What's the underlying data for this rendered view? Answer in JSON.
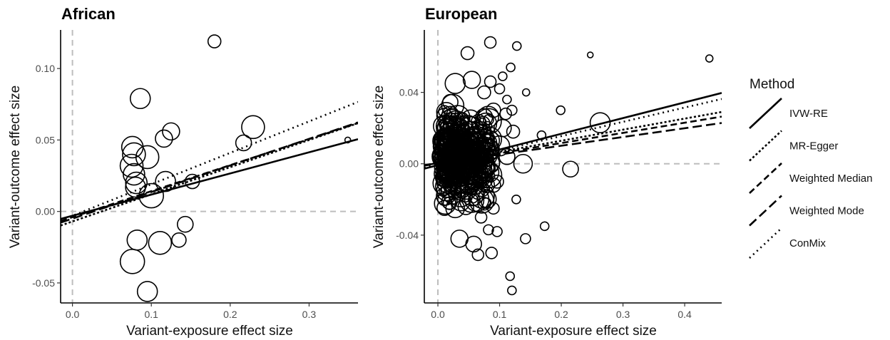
{
  "chart_data": [
    {
      "type": "scatter",
      "title": "African",
      "xlabel": "Variant-exposure effect size",
      "ylabel": "Variant-outcome effect size",
      "xlim": [
        -0.015,
        0.362
      ],
      "ylim": [
        -0.064,
        0.127
      ],
      "xticks": [
        0.0,
        0.1,
        0.2,
        0.3
      ],
      "xtick_labels": [
        "0.0",
        "0.1",
        "0.2",
        "0.3"
      ],
      "yticks": [
        -0.05,
        0.0,
        0.05,
        0.1
      ],
      "ytick_labels": [
        "-0.05",
        "0.00",
        "0.05",
        "0.10"
      ],
      "reference_lines": {
        "x": 0,
        "y": 0
      },
      "points": [
        {
          "x": 0.18,
          "y": 0.119,
          "r": 9
        },
        {
          "x": 0.086,
          "y": 0.079,
          "r": 14
        },
        {
          "x": 0.229,
          "y": 0.059,
          "r": 16
        },
        {
          "x": 0.125,
          "y": 0.056,
          "r": 12
        },
        {
          "x": 0.116,
          "y": 0.051,
          "r": 12
        },
        {
          "x": 0.217,
          "y": 0.048,
          "r": 11
        },
        {
          "x": 0.349,
          "y": 0.05,
          "r": 4
        },
        {
          "x": 0.076,
          "y": 0.045,
          "r": 15
        },
        {
          "x": 0.078,
          "y": 0.04,
          "r": 16
        },
        {
          "x": 0.095,
          "y": 0.038,
          "r": 16
        },
        {
          "x": 0.075,
          "y": 0.032,
          "r": 16
        },
        {
          "x": 0.078,
          "y": 0.026,
          "r": 15
        },
        {
          "x": 0.081,
          "y": 0.02,
          "r": 15
        },
        {
          "x": 0.118,
          "y": 0.021,
          "r": 14
        },
        {
          "x": 0.152,
          "y": 0.021,
          "r": 10
        },
        {
          "x": 0.08,
          "y": 0.017,
          "r": 14
        },
        {
          "x": 0.1,
          "y": 0.011,
          "r": 17
        },
        {
          "x": 0.143,
          "y": -0.009,
          "r": 11
        },
        {
          "x": 0.082,
          "y": -0.02,
          "r": 14
        },
        {
          "x": 0.111,
          "y": -0.022,
          "r": 16
        },
        {
          "x": 0.135,
          "y": -0.02,
          "r": 10
        },
        {
          "x": 0.076,
          "y": -0.035,
          "r": 17
        },
        {
          "x": 0.095,
          "y": -0.056,
          "r": 14
        }
      ],
      "lines": [
        {
          "method": "IVW-RE",
          "intercept": -0.003,
          "slope": 0.148
        },
        {
          "method": "MR-Egger",
          "intercept": -0.007,
          "slope": 0.19
        },
        {
          "method": "Weighted Median",
          "intercept": -0.004,
          "slope": 0.182
        },
        {
          "method": "Weighted Mode",
          "intercept": -0.005,
          "slope": 0.186
        },
        {
          "method": "ConMix",
          "intercept": -0.003,
          "slope": 0.22
        }
      ]
    },
    {
      "type": "scatter",
      "title": "European",
      "xlabel": "Variant-exposure effect size",
      "ylabel": "Variant-outcome effect size",
      "xlim": [
        -0.022,
        0.46
      ],
      "ylim": [
        -0.078,
        0.075
      ],
      "xticks": [
        0.0,
        0.1,
        0.2,
        0.3,
        0.4
      ],
      "xtick_labels": [
        "0.0",
        "0.1",
        "0.2",
        "0.3",
        "0.4"
      ],
      "yticks": [
        -0.04,
        0.0,
        0.04
      ],
      "ytick_labels": [
        "-0.04",
        "0.00",
        "0.04"
      ],
      "reference_lines": {
        "x": 0,
        "y": 0
      },
      "points": [
        {
          "x": 0.085,
          "y": 0.068,
          "r": 8
        },
        {
          "x": 0.128,
          "y": 0.066,
          "r": 6
        },
        {
          "x": 0.048,
          "y": 0.062,
          "r": 9
        },
        {
          "x": 0.247,
          "y": 0.061,
          "r": 4
        },
        {
          "x": 0.44,
          "y": 0.059,
          "r": 5
        },
        {
          "x": 0.118,
          "y": 0.054,
          "r": 6
        },
        {
          "x": 0.105,
          "y": 0.049,
          "r": 6
        },
        {
          "x": 0.143,
          "y": 0.04,
          "r": 5
        },
        {
          "x": 0.112,
          "y": 0.036,
          "r": 6
        },
        {
          "x": 0.199,
          "y": 0.03,
          "r": 6
        },
        {
          "x": 0.263,
          "y": 0.023,
          "r": 14
        },
        {
          "x": 0.168,
          "y": 0.016,
          "r": 6
        },
        {
          "x": 0.138,
          "y": 0.0,
          "r": 13
        },
        {
          "x": 0.215,
          "y": -0.003,
          "r": 11
        },
        {
          "x": 0.127,
          "y": -0.02,
          "r": 6
        },
        {
          "x": 0.173,
          "y": -0.035,
          "r": 6
        },
        {
          "x": 0.082,
          "y": -0.037,
          "r": 7
        },
        {
          "x": 0.096,
          "y": -0.038,
          "r": 7
        },
        {
          "x": 0.142,
          "y": -0.042,
          "r": 7
        },
        {
          "x": 0.035,
          "y": -0.042,
          "r": 12
        },
        {
          "x": 0.058,
          "y": -0.045,
          "r": 11
        },
        {
          "x": 0.087,
          "y": -0.05,
          "r": 8
        },
        {
          "x": 0.065,
          "y": -0.051,
          "r": 8
        },
        {
          "x": 0.117,
          "y": -0.063,
          "r": 6
        },
        {
          "x": 0.12,
          "y": -0.071,
          "r": 6
        },
        {
          "x": 0.105,
          "y": 0.02,
          "r": 12
        },
        {
          "x": 0.09,
          "y": 0.03,
          "r": 10
        },
        {
          "x": 0.1,
          "y": 0.01,
          "r": 14
        },
        {
          "x": 0.112,
          "y": 0.004,
          "r": 11
        },
        {
          "x": 0.096,
          "y": -0.01,
          "r": 9
        },
        {
          "x": 0.09,
          "y": -0.025,
          "r": 8
        },
        {
          "x": 0.11,
          "y": 0.028,
          "r": 8
        },
        {
          "x": 0.122,
          "y": 0.018,
          "r": 9
        },
        {
          "x": 0.075,
          "y": 0.04,
          "r": 9
        },
        {
          "x": 0.07,
          "y": -0.03,
          "r": 8
        },
        {
          "x": 0.055,
          "y": 0.047,
          "r": 12
        },
        {
          "x": 0.085,
          "y": 0.046,
          "r": 8
        },
        {
          "x": 0.12,
          "y": 0.03,
          "r": 7
        },
        {
          "x": 0.1,
          "y": 0.042,
          "r": 7
        },
        {
          "x": 0.09,
          "y": -0.012,
          "r": 10
        },
        {
          "x": 0.028,
          "y": 0.045,
          "r": 14
        },
        {
          "x": 0.028,
          "y": -0.025,
          "r": 13
        }
      ],
      "dense_cluster": {
        "x_range": [
          0.01,
          0.085
        ],
        "y_range": [
          -0.03,
          0.04
        ],
        "y_center": 0.004
      },
      "lines": [
        {
          "method": "IVW-RE",
          "intercept": -0.0008,
          "slope": 0.088
        },
        {
          "method": "MR-Egger",
          "intercept": 0.0005,
          "slope": 0.062
        },
        {
          "method": "Weighted Median",
          "intercept": 0.0002,
          "slope": 0.057
        },
        {
          "method": "Weighted Mode",
          "intercept": 0.0003,
          "slope": 0.049
        },
        {
          "method": "ConMix",
          "intercept": -0.0005,
          "slope": 0.08
        }
      ]
    }
  ],
  "legend": {
    "title": "Method",
    "items": [
      {
        "label": "IVW-RE",
        "dash": "solid"
      },
      {
        "label": "MR-Egger",
        "dash": "dashed-short"
      },
      {
        "label": "Weighted Median",
        "dash": "dashed-long"
      },
      {
        "label": "Weighted Mode",
        "dash": "dashed-longer"
      },
      {
        "label": "ConMix",
        "dash": "dotted"
      }
    ]
  },
  "colors": {
    "points": "#000000",
    "lines": "#000000",
    "reference": "#bdbdbd",
    "ticks": "#4d4d4d"
  }
}
